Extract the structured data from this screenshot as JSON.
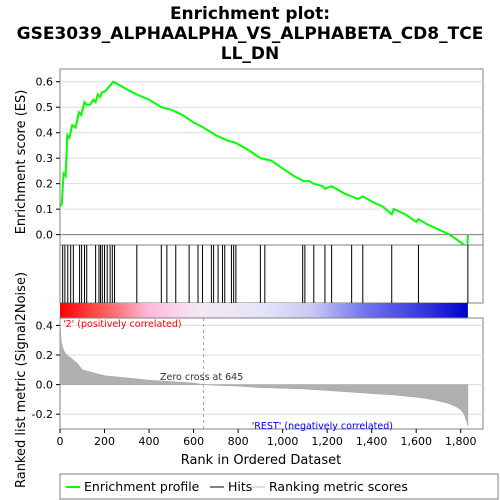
{
  "chart_data": {
    "type": "line",
    "title_lines": [
      "Enrichment plot:",
      "GSE3039_ALPHAALPHA_VS_ALPHABETA_CD8_TCE",
      "LL_DN"
    ],
    "es_panel": {
      "ylabel": "Enrichment score (ES)",
      "ylim": [
        -0.08,
        0.65
      ],
      "yticks": [
        "0.0",
        "0.1",
        "0.2",
        "0.3",
        "0.4",
        "0.5",
        "0.6"
      ],
      "ytick_values": [
        0.0,
        0.1,
        0.2,
        0.3,
        0.4,
        0.5,
        0.6
      ],
      "series": [
        {
          "name": "Enrichment profile",
          "color": "#00ff00",
          "x": [
            0,
            8,
            16,
            25,
            33,
            42,
            55,
            70,
            85,
            95,
            110,
            120,
            135,
            150,
            160,
            170,
            180,
            190,
            200,
            210,
            220,
            230,
            240,
            260,
            300,
            345,
            400,
            455,
            500,
            550,
            600,
            645,
            700,
            750,
            790,
            850,
            900,
            950,
            1000,
            1050,
            1095,
            1120,
            1140,
            1180,
            1190,
            1220,
            1240,
            1280,
            1310,
            1340,
            1360,
            1400,
            1450,
            1490,
            1500,
            1550,
            1600,
            1610,
            1650,
            1700,
            1750,
            1800,
            1830,
            1832
          ],
          "y": [
            0.11,
            0.12,
            0.24,
            0.23,
            0.39,
            0.38,
            0.43,
            0.42,
            0.48,
            0.47,
            0.52,
            0.51,
            0.51,
            0.53,
            0.52,
            0.55,
            0.54,
            0.56,
            0.56,
            0.57,
            0.58,
            0.59,
            0.6,
            0.59,
            0.57,
            0.55,
            0.53,
            0.5,
            0.49,
            0.47,
            0.44,
            0.42,
            0.39,
            0.37,
            0.36,
            0.33,
            0.3,
            0.29,
            0.26,
            0.23,
            0.21,
            0.21,
            0.2,
            0.19,
            0.18,
            0.19,
            0.18,
            0.16,
            0.15,
            0.14,
            0.15,
            0.13,
            0.11,
            0.08,
            0.1,
            0.08,
            0.05,
            0.06,
            0.04,
            0.02,
            0.0,
            -0.03,
            -0.05,
            0.0
          ]
        }
      ]
    },
    "hits": {
      "name": "Hits",
      "positions": [
        12,
        22,
        35,
        48,
        60,
        88,
        97,
        110,
        120,
        160,
        175,
        182,
        190,
        200,
        212,
        225,
        235,
        245,
        345,
        455,
        480,
        520,
        580,
        620,
        640,
        680,
        690,
        710,
        730,
        740,
        770,
        780,
        790,
        900,
        920,
        1090,
        1100,
        1140,
        1190,
        1220,
        1310,
        1360,
        1490,
        1610,
        1832
      ]
    },
    "metric_panel": {
      "ylabel": "Ranked list metric (Signal2Noise)",
      "ylim": [
        -0.3,
        0.45
      ],
      "yticks": [
        "0.4",
        "0.2",
        "0.0",
        "-0.2"
      ],
      "ytick_values": [
        0.4,
        0.2,
        0.0,
        -0.2
      ],
      "series_name": "Ranking metric scores",
      "x": [
        0,
        5,
        10,
        20,
        30,
        50,
        80,
        100,
        150,
        200,
        300,
        400,
        500,
        600,
        645,
        700,
        800,
        900,
        1000,
        1100,
        1200,
        1300,
        1400,
        1500,
        1600,
        1650,
        1700,
        1750,
        1780,
        1800,
        1815,
        1825,
        1832
      ],
      "y": [
        0.44,
        0.3,
        0.26,
        0.22,
        0.2,
        0.18,
        0.14,
        0.1,
        0.08,
        0.06,
        0.045,
        0.03,
        0.02,
        0.01,
        0.0,
        -0.005,
        -0.01,
        -0.02,
        -0.025,
        -0.03,
        -0.04,
        -0.05,
        -0.06,
        -0.07,
        -0.085,
        -0.095,
        -0.11,
        -0.13,
        -0.15,
        -0.17,
        -0.2,
        -0.24,
        -0.28
      ],
      "pos_label": "'2' (positively correlated)",
      "neg_label": "'REST' (negatively correlated)",
      "zero_cross_label": "Zero cross at 645",
      "zero_cross": 645
    },
    "xaxis": {
      "label": "Rank in Ordered Dataset",
      "xlim": [
        0,
        1900
      ],
      "ticks": [
        "0",
        "200",
        "400",
        "600",
        "800",
        "1,000",
        "1,200",
        "1,400",
        "1,600",
        "1,800"
      ],
      "tick_values": [
        0,
        200,
        400,
        600,
        800,
        1000,
        1200,
        1400,
        1600,
        1800
      ],
      "max_rank": 1832
    },
    "legend": {
      "items": [
        {
          "label": "Enrichment profile",
          "color": "#00ff00",
          "kind": "line"
        },
        {
          "label": "Hits",
          "color": "#000000",
          "kind": "tick"
        },
        {
          "label": "Ranking metric scores",
          "color": "#bebebe",
          "kind": "thin"
        }
      ],
      "placement": "bottom"
    },
    "colors": {
      "grid": "#dcdcdc",
      "pos_text": "#ff0000",
      "neg_text": "#0000ff",
      "metric_fill": "#b0b0b0"
    }
  }
}
